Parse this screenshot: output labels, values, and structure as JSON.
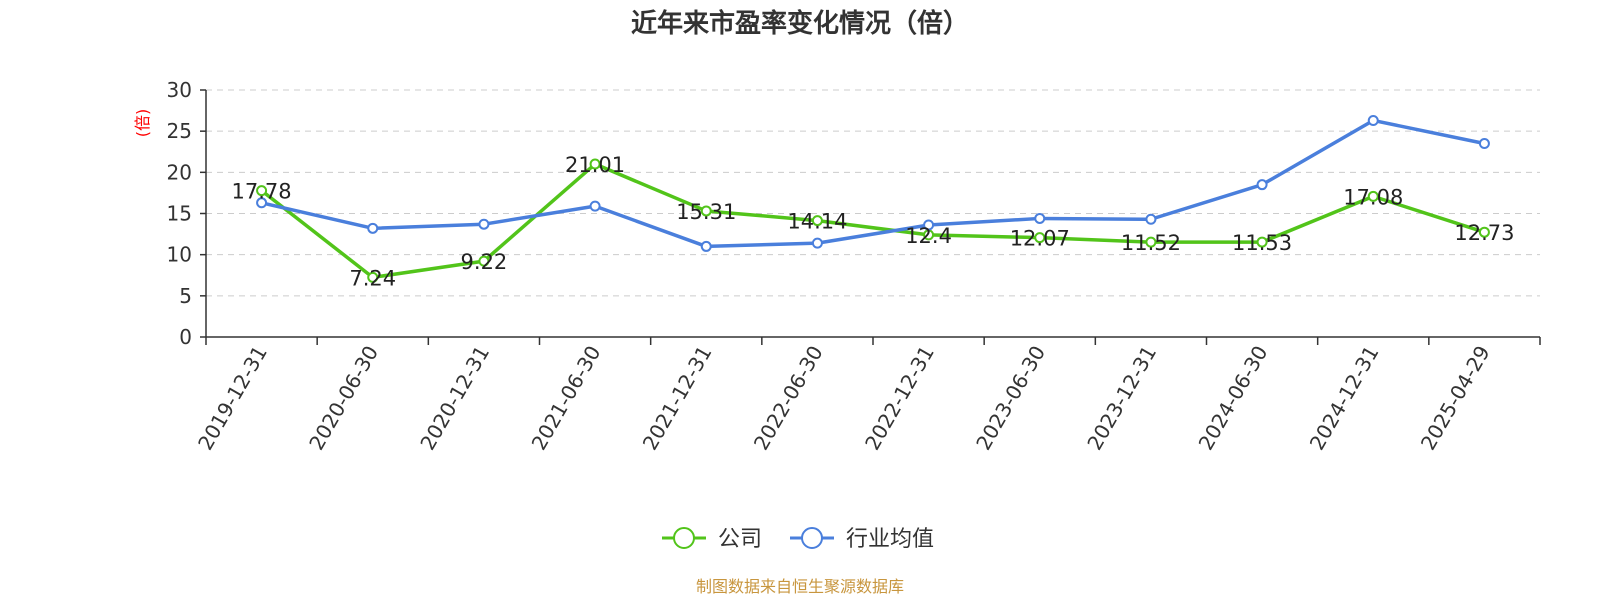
{
  "title": "近年来市盈率变化情况（倍）",
  "source": "制图数据来自恒生聚源数据库",
  "chart_data": {
    "type": "line",
    "title": "近年来市盈率变化情况（倍）",
    "ylabel": "(倍)",
    "xlabel": "",
    "ylim": [
      0,
      30
    ],
    "yticks": [
      0,
      5,
      10,
      15,
      20,
      25,
      30
    ],
    "grid": true,
    "legend_position": "bottom",
    "categories": [
      "2019-12-31",
      "2020-06-30",
      "2020-12-31",
      "2021-06-30",
      "2021-12-31",
      "2022-06-30",
      "2022-12-31",
      "2023-06-30",
      "2023-12-31",
      "2024-06-30",
      "2024-12-31",
      "2025-04-29"
    ],
    "series": [
      {
        "name": "公司",
        "color": "#52c41a",
        "values": [
          17.78,
          7.24,
          9.22,
          21.01,
          15.31,
          14.14,
          12.4,
          12.07,
          11.52,
          11.53,
          17.08,
          12.73
        ],
        "labels": [
          "17.78",
          "7.24",
          "9.22",
          "21.01",
          "15.31",
          "14.14",
          "12.4",
          "12.07",
          "11.52",
          "11.53",
          "17.08",
          "12.73"
        ]
      },
      {
        "name": "行业均值",
        "color": "#4a7fdc",
        "values": [
          16.3,
          13.2,
          13.7,
          15.9,
          11.0,
          11.4,
          13.6,
          14.4,
          14.3,
          18.5,
          26.3,
          23.5
        ]
      }
    ]
  }
}
